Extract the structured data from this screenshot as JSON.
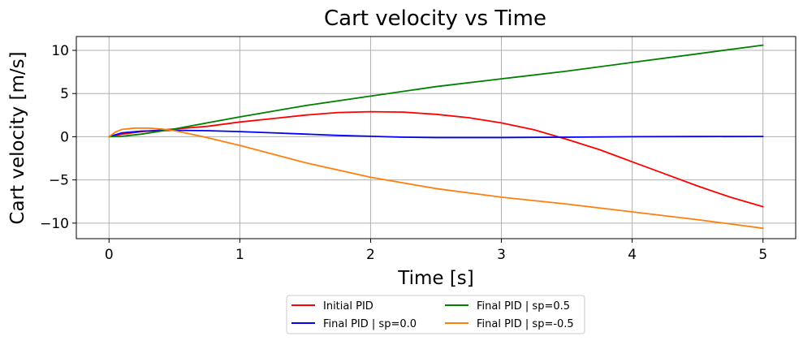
{
  "chart_data": {
    "type": "line",
    "title": "Cart velocity vs Time",
    "xlabel": "Time [s]",
    "ylabel": "Cart velocity [m/s]",
    "xlim": [
      -0.25,
      5.25
    ],
    "ylim": [
      -11.8,
      11.6
    ],
    "xticks": [
      0,
      1,
      2,
      3,
      4,
      5
    ],
    "yticks": [
      10,
      5,
      0,
      -5,
      -10
    ],
    "grid": true,
    "legend_position": "bottom-center",
    "legend_columns": 2,
    "series": [
      {
        "name": "Initial PID",
        "color": "#ff0000",
        "x": [
          0,
          0.1,
          0.25,
          0.5,
          0.75,
          1.0,
          1.25,
          1.5,
          1.75,
          2.0,
          2.25,
          2.5,
          2.75,
          3.0,
          3.25,
          3.5,
          3.75,
          4.0,
          4.25,
          4.5,
          4.75,
          5.0
        ],
        "y": [
          0,
          0.3,
          0.6,
          0.9,
          1.2,
          1.7,
          2.1,
          2.5,
          2.8,
          2.9,
          2.85,
          2.6,
          2.2,
          1.6,
          0.8,
          -0.3,
          -1.5,
          -2.9,
          -4.3,
          -5.7,
          -7.0,
          -8.1
        ]
      },
      {
        "name": "Final PID | sp=0.0",
        "color": "#0000ff",
        "x": [
          0,
          0.1,
          0.25,
          0.5,
          0.75,
          1.0,
          1.25,
          1.5,
          1.75,
          2.0,
          2.25,
          2.5,
          3.0,
          3.5,
          4.0,
          4.5,
          5.0
        ],
        "y": [
          0,
          0.45,
          0.65,
          0.75,
          0.7,
          0.6,
          0.45,
          0.3,
          0.15,
          0.05,
          -0.05,
          -0.1,
          -0.1,
          -0.05,
          0,
          0.02,
          0.03
        ]
      },
      {
        "name": "Final PID | sp=0.5",
        "color": "#008000",
        "x": [
          0,
          0.1,
          0.25,
          0.5,
          0.75,
          1.0,
          1.5,
          2.0,
          2.5,
          3.0,
          3.5,
          4.0,
          4.5,
          5.0
        ],
        "y": [
          0,
          0.05,
          0.3,
          0.9,
          1.6,
          2.3,
          3.6,
          4.7,
          5.8,
          6.7,
          7.6,
          8.6,
          9.6,
          10.6
        ]
      },
      {
        "name": "Final PID | sp=-0.5",
        "color": "#ff7f0e",
        "x": [
          0,
          0.05,
          0.1,
          0.2,
          0.3,
          0.4,
          0.5,
          0.6,
          0.75,
          0.9,
          1.0,
          1.25,
          1.5,
          2.0,
          2.5,
          3.0,
          3.5,
          4.0,
          4.5,
          5.0
        ],
        "y": [
          0,
          0.55,
          0.85,
          1.0,
          1.0,
          0.9,
          0.7,
          0.4,
          -0.1,
          -0.65,
          -1.0,
          -2.0,
          -3.0,
          -4.7,
          -6.0,
          -7.0,
          -7.8,
          -8.7,
          -9.6,
          -10.6
        ]
      }
    ]
  }
}
